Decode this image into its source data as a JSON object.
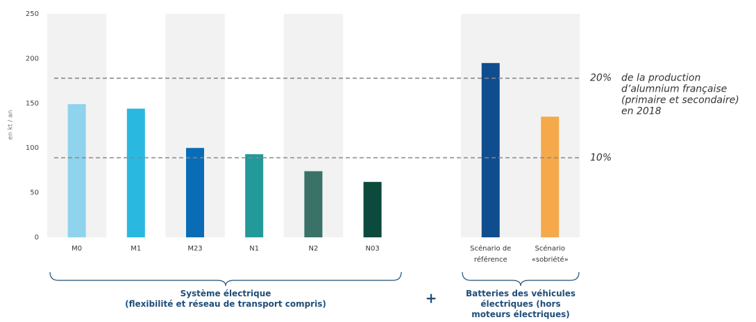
{
  "chart_data": {
    "type": "bar",
    "y_axis_label": "en kt / an",
    "categories": [
      "M0",
      "M1",
      "M23",
      "N1",
      "N2",
      "N03",
      "Scénario de\nréférence",
      "Scénario\n«sobriété»"
    ],
    "values": [
      149,
      144,
      100,
      93,
      74,
      62,
      195,
      135
    ],
    "colors": [
      "#8fd3ec",
      "#29b9e0",
      "#0a6cb5",
      "#24999a",
      "#3a7268",
      "#0b4a3c",
      "#0f4d8e",
      "#f5a94a"
    ],
    "ylim": [
      0,
      250
    ],
    "yticks": [
      0,
      50,
      100,
      150,
      200,
      250
    ],
    "reference_lines": [
      {
        "value": 178,
        "label": "20%",
        "note": "de la production\nd’alumnium française\n(primaire et secondaire)\nen 2018"
      },
      {
        "value": 89,
        "label": "10%"
      }
    ],
    "groups": [
      {
        "label": "Système électrique\n(flexibilité et réseau de transport compris)"
      },
      {
        "label": "Batteries des véhicules\nélectriques (hors\nmoteurs électriques)"
      }
    ],
    "group_separator": "+"
  }
}
